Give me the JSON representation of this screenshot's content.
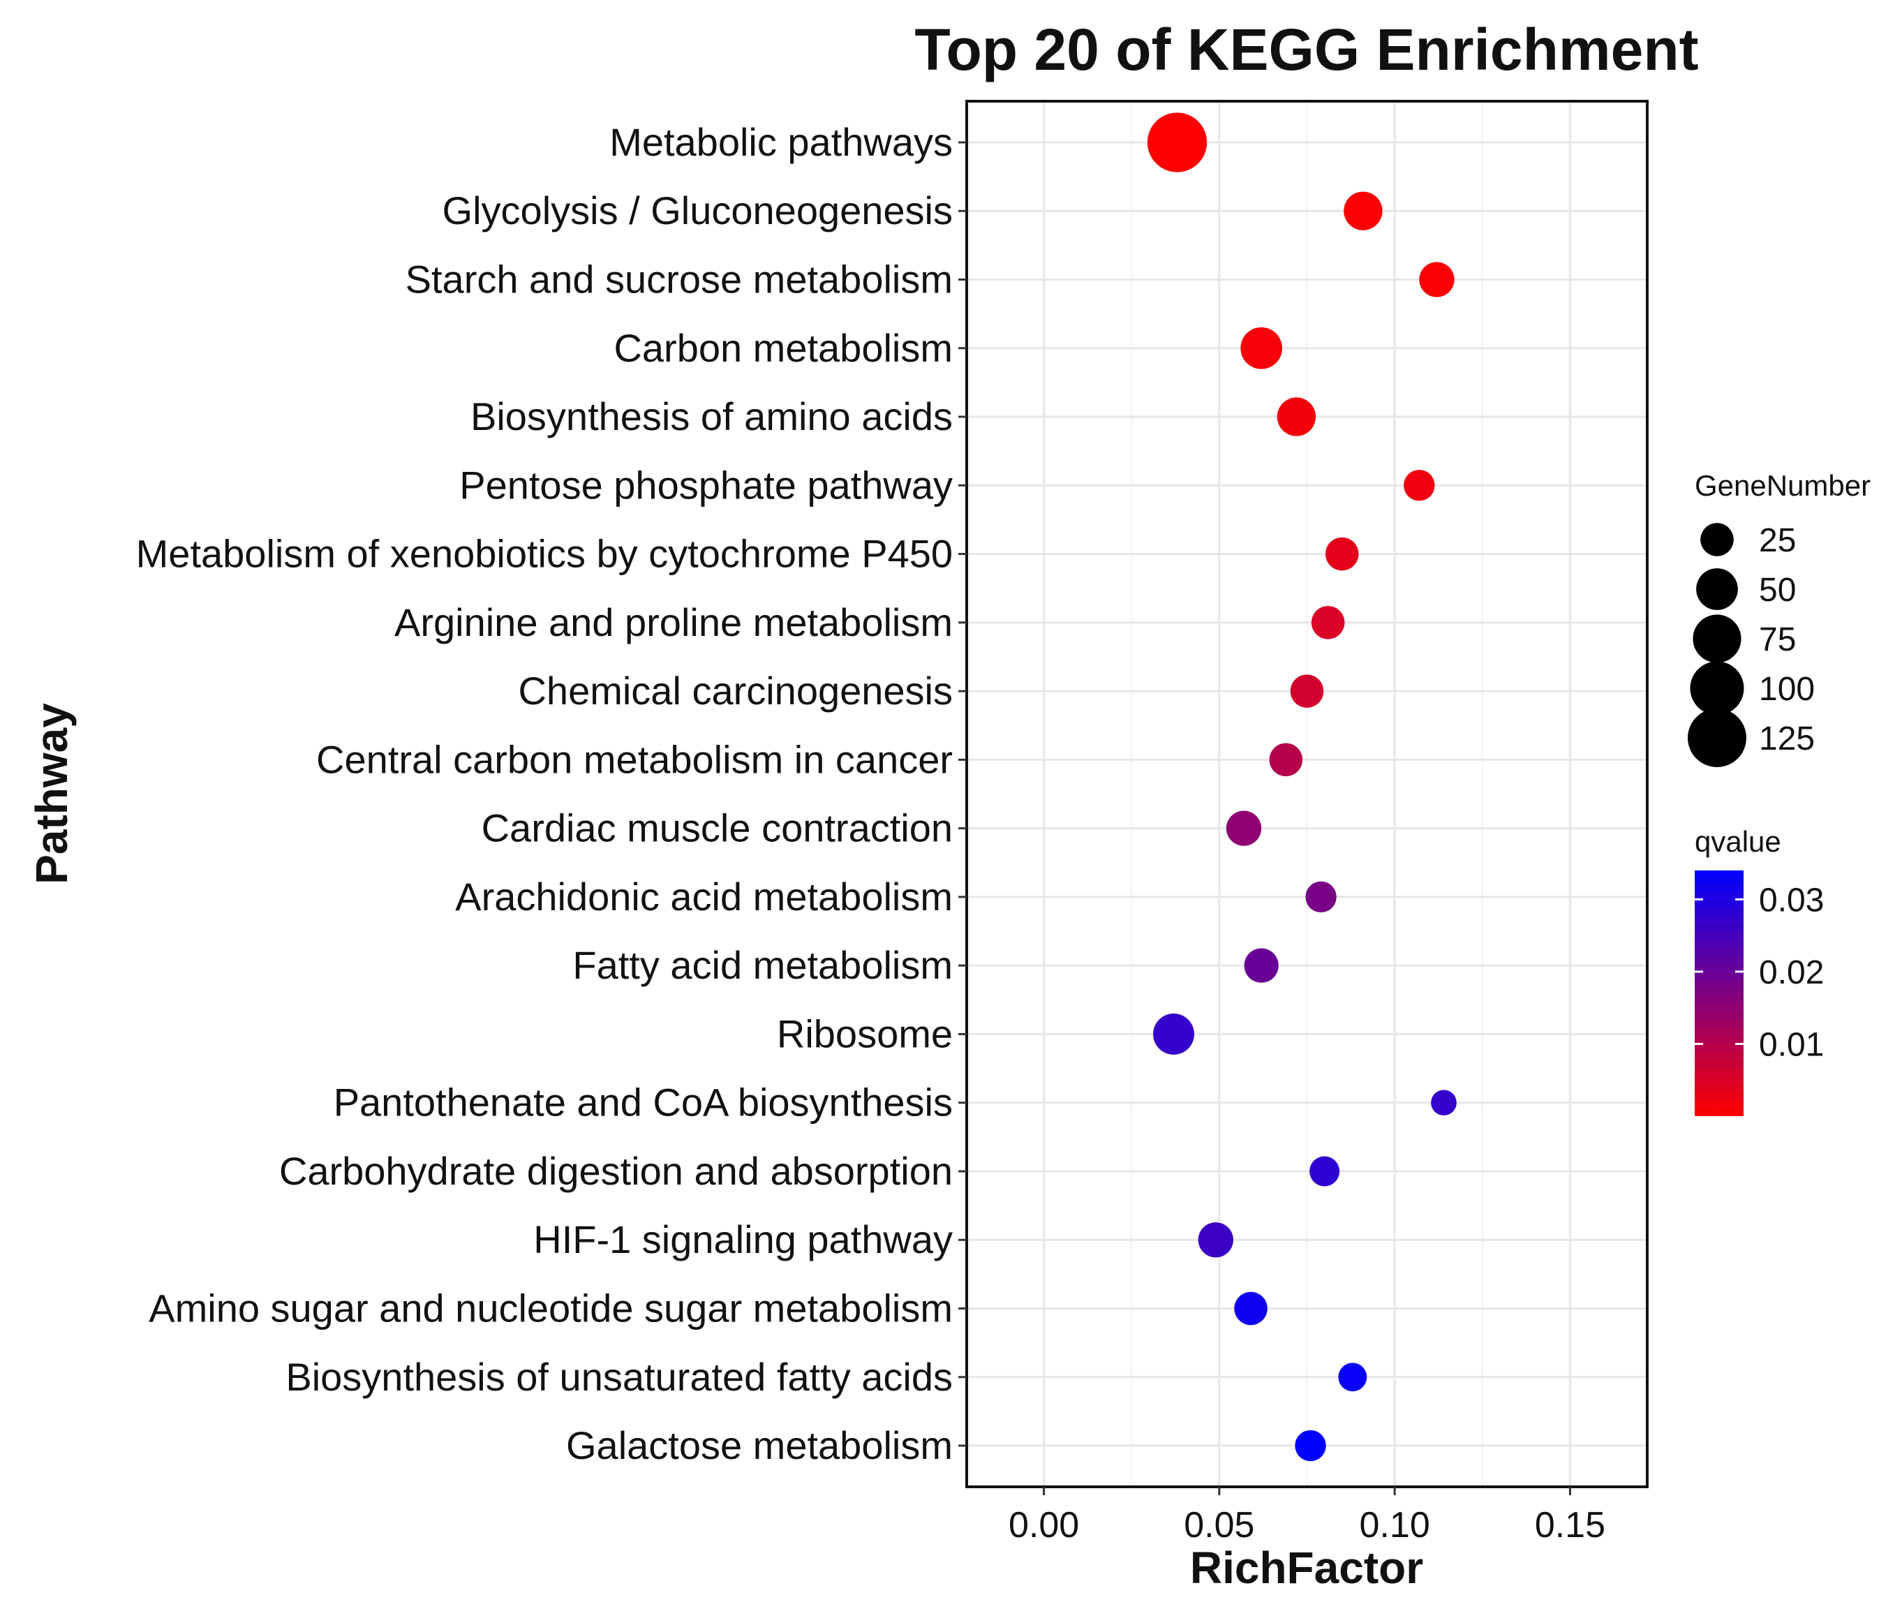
{
  "chart_data": {
    "type": "scatter",
    "title": "Top 20 of KEGG Enrichment",
    "xlabel": "RichFactor",
    "ylabel": "Pathway",
    "xlim": [
      -0.022,
      0.172
    ],
    "xticks": [
      0.0,
      0.05,
      0.1,
      0.15
    ],
    "xtick_labels": [
      "0.00",
      "0.05",
      "0.10",
      "0.15"
    ],
    "grid": true,
    "points": [
      {
        "pathway": "Metabolic pathways",
        "rich_factor": 0.038,
        "gene_number": 130,
        "qvalue": 0.0001
      },
      {
        "pathway": "Glycolysis / Gluconeogenesis",
        "rich_factor": 0.091,
        "gene_number": 40,
        "qvalue": 0.0005
      },
      {
        "pathway": "Starch and sucrose metabolism",
        "rich_factor": 0.112,
        "gene_number": 30,
        "qvalue": 0.0008
      },
      {
        "pathway": "Carbon metabolism",
        "rich_factor": 0.062,
        "gene_number": 50,
        "qvalue": 0.001
      },
      {
        "pathway": "Biosynthesis of amino acids",
        "rich_factor": 0.072,
        "gene_number": 40,
        "qvalue": 0.0015
      },
      {
        "pathway": "Pentose phosphate pathway",
        "rich_factor": 0.107,
        "gene_number": 20,
        "qvalue": 0.002
      },
      {
        "pathway": "Metabolism of xenobiotics by cytochrome P450",
        "rich_factor": 0.085,
        "gene_number": 25,
        "qvalue": 0.0035
      },
      {
        "pathway": "Arginine and proline metabolism",
        "rich_factor": 0.081,
        "gene_number": 25,
        "qvalue": 0.005
      },
      {
        "pathway": "Chemical carcinogenesis",
        "rich_factor": 0.075,
        "gene_number": 25,
        "qvalue": 0.006
      },
      {
        "pathway": "Central carbon metabolism in cancer",
        "rich_factor": 0.069,
        "gene_number": 25,
        "qvalue": 0.01
      },
      {
        "pathway": "Cardiac muscle contraction",
        "rich_factor": 0.057,
        "gene_number": 30,
        "qvalue": 0.015
      },
      {
        "pathway": "Arachidonic acid metabolism",
        "rich_factor": 0.079,
        "gene_number": 20,
        "qvalue": 0.018
      },
      {
        "pathway": "Fatty acid metabolism",
        "rich_factor": 0.062,
        "gene_number": 28,
        "qvalue": 0.02
      },
      {
        "pathway": "Ribosome",
        "rich_factor": 0.037,
        "gene_number": 48,
        "qvalue": 0.027
      },
      {
        "pathway": "Pantothenate and CoA biosynthesis",
        "rich_factor": 0.114,
        "gene_number": 10,
        "qvalue": 0.027
      },
      {
        "pathway": "Carbohydrate digestion and absorption",
        "rich_factor": 0.08,
        "gene_number": 18,
        "qvalue": 0.028
      },
      {
        "pathway": "HIF-1 signaling pathway",
        "rich_factor": 0.049,
        "gene_number": 30,
        "qvalue": 0.026
      },
      {
        "pathway": "Amino sugar and nucleotide sugar metabolism",
        "rich_factor": 0.059,
        "gene_number": 25,
        "qvalue": 0.032
      },
      {
        "pathway": "Biosynthesis of unsaturated fatty acids",
        "rich_factor": 0.088,
        "gene_number": 15,
        "qvalue": 0.033
      },
      {
        "pathway": "Galactose metabolism",
        "rich_factor": 0.076,
        "gene_number": 20,
        "qvalue": 0.034
      }
    ],
    "size_legend": {
      "title": "GeneNumber",
      "values": [
        25,
        50,
        75,
        100,
        125
      ],
      "labels": [
        "25",
        "50",
        "75",
        "100",
        "125"
      ]
    },
    "color_legend": {
      "title": "qvalue",
      "min": 0.0,
      "max": 0.034,
      "ticks": [
        0.01,
        0.02,
        0.03
      ],
      "labels": [
        "0.01",
        "0.02",
        "0.03"
      ],
      "low_color": "#ff0000",
      "high_color": "#0000ff"
    }
  }
}
